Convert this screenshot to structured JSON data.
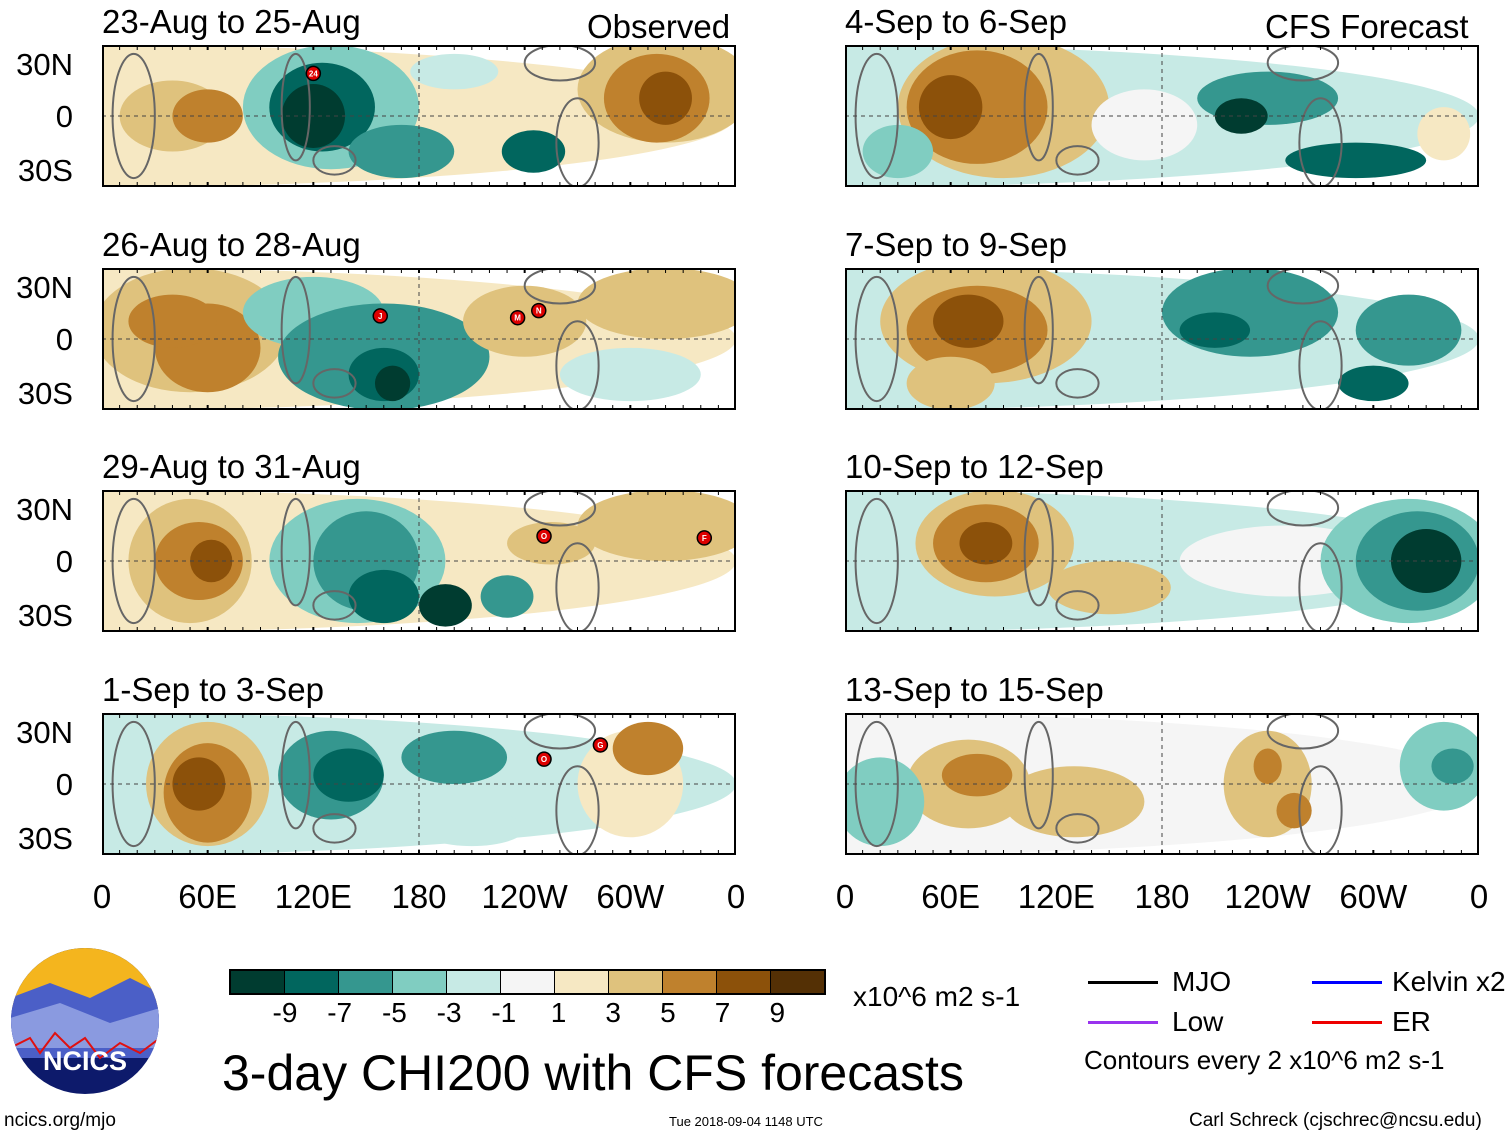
{
  "headers": {
    "observed": "Observed",
    "forecast": "CFS Forecast"
  },
  "panels": [
    {
      "title": "23-Aug to 25-Aug",
      "group": "observed",
      "storms": [
        {
          "label": "24",
          "lon": 120,
          "lat": 24
        }
      ]
    },
    {
      "title": "4-Sep to 6-Sep",
      "group": "forecast",
      "storms": []
    },
    {
      "title": "26-Aug to 28-Aug",
      "group": "observed",
      "storms": [
        {
          "label": "J",
          "lon": 158,
          "lat": 13
        },
        {
          "label": "M",
          "lon": 236,
          "lat": 12
        },
        {
          "label": "N",
          "lon": 248,
          "lat": 16
        }
      ]
    },
    {
      "title": "7-Sep to 9-Sep",
      "group": "forecast",
      "storms": []
    },
    {
      "title": "29-Aug to 31-Aug",
      "group": "observed",
      "storms": [
        {
          "label": "O",
          "lon": 251,
          "lat": 14
        },
        {
          "label": "F",
          "lon": 342,
          "lat": 13
        }
      ]
    },
    {
      "title": "10-Sep to 12-Sep",
      "group": "forecast",
      "storms": []
    },
    {
      "title": "1-Sep to 3-Sep",
      "group": "observed",
      "storms": [
        {
          "label": "O",
          "lon": 251,
          "lat": 14
        },
        {
          "label": "G",
          "lon": 283,
          "lat": 22
        }
      ]
    },
    {
      "title": "13-Sep to 15-Sep",
      "group": "forecast",
      "storms": []
    }
  ],
  "lat_labels": [
    "30N",
    "0",
    "30S"
  ],
  "lon_labels": [
    "0",
    "60E",
    "120E",
    "180",
    "120W",
    "60W",
    "0"
  ],
  "colorbar": {
    "colors": [
      "#003c30",
      "#01665e",
      "#35978f",
      "#80cdc1",
      "#c7eae5",
      "#f5f5f5",
      "#f6e8c3",
      "#dfc27d",
      "#bf812d",
      "#8c510a",
      "#543005"
    ],
    "labels": [
      "-9",
      "-7",
      "-5",
      "-3",
      "-1",
      "1",
      "3",
      "5",
      "7",
      "9"
    ],
    "units": "x10^6 m2 s-1"
  },
  "title": "3-day CHI200 with CFS forecasts",
  "legend": {
    "items": [
      {
        "label": "MJO",
        "color": "#000000"
      },
      {
        "label": "Low",
        "color": "#9933ee"
      },
      {
        "label": "Kelvin x2",
        "color": "#0000ff"
      },
      {
        "label": "ER",
        "color": "#ee0000"
      }
    ],
    "note": "Contours every 2 x10^6 m2 s-1"
  },
  "logo_text": "NCICS",
  "footer": {
    "left": "ncics.org/mjo",
    "center": "Tue 2018-09-04 1148 UTC",
    "right": "Carl Schreck (cjschrec@ncsu.edu)"
  }
}
